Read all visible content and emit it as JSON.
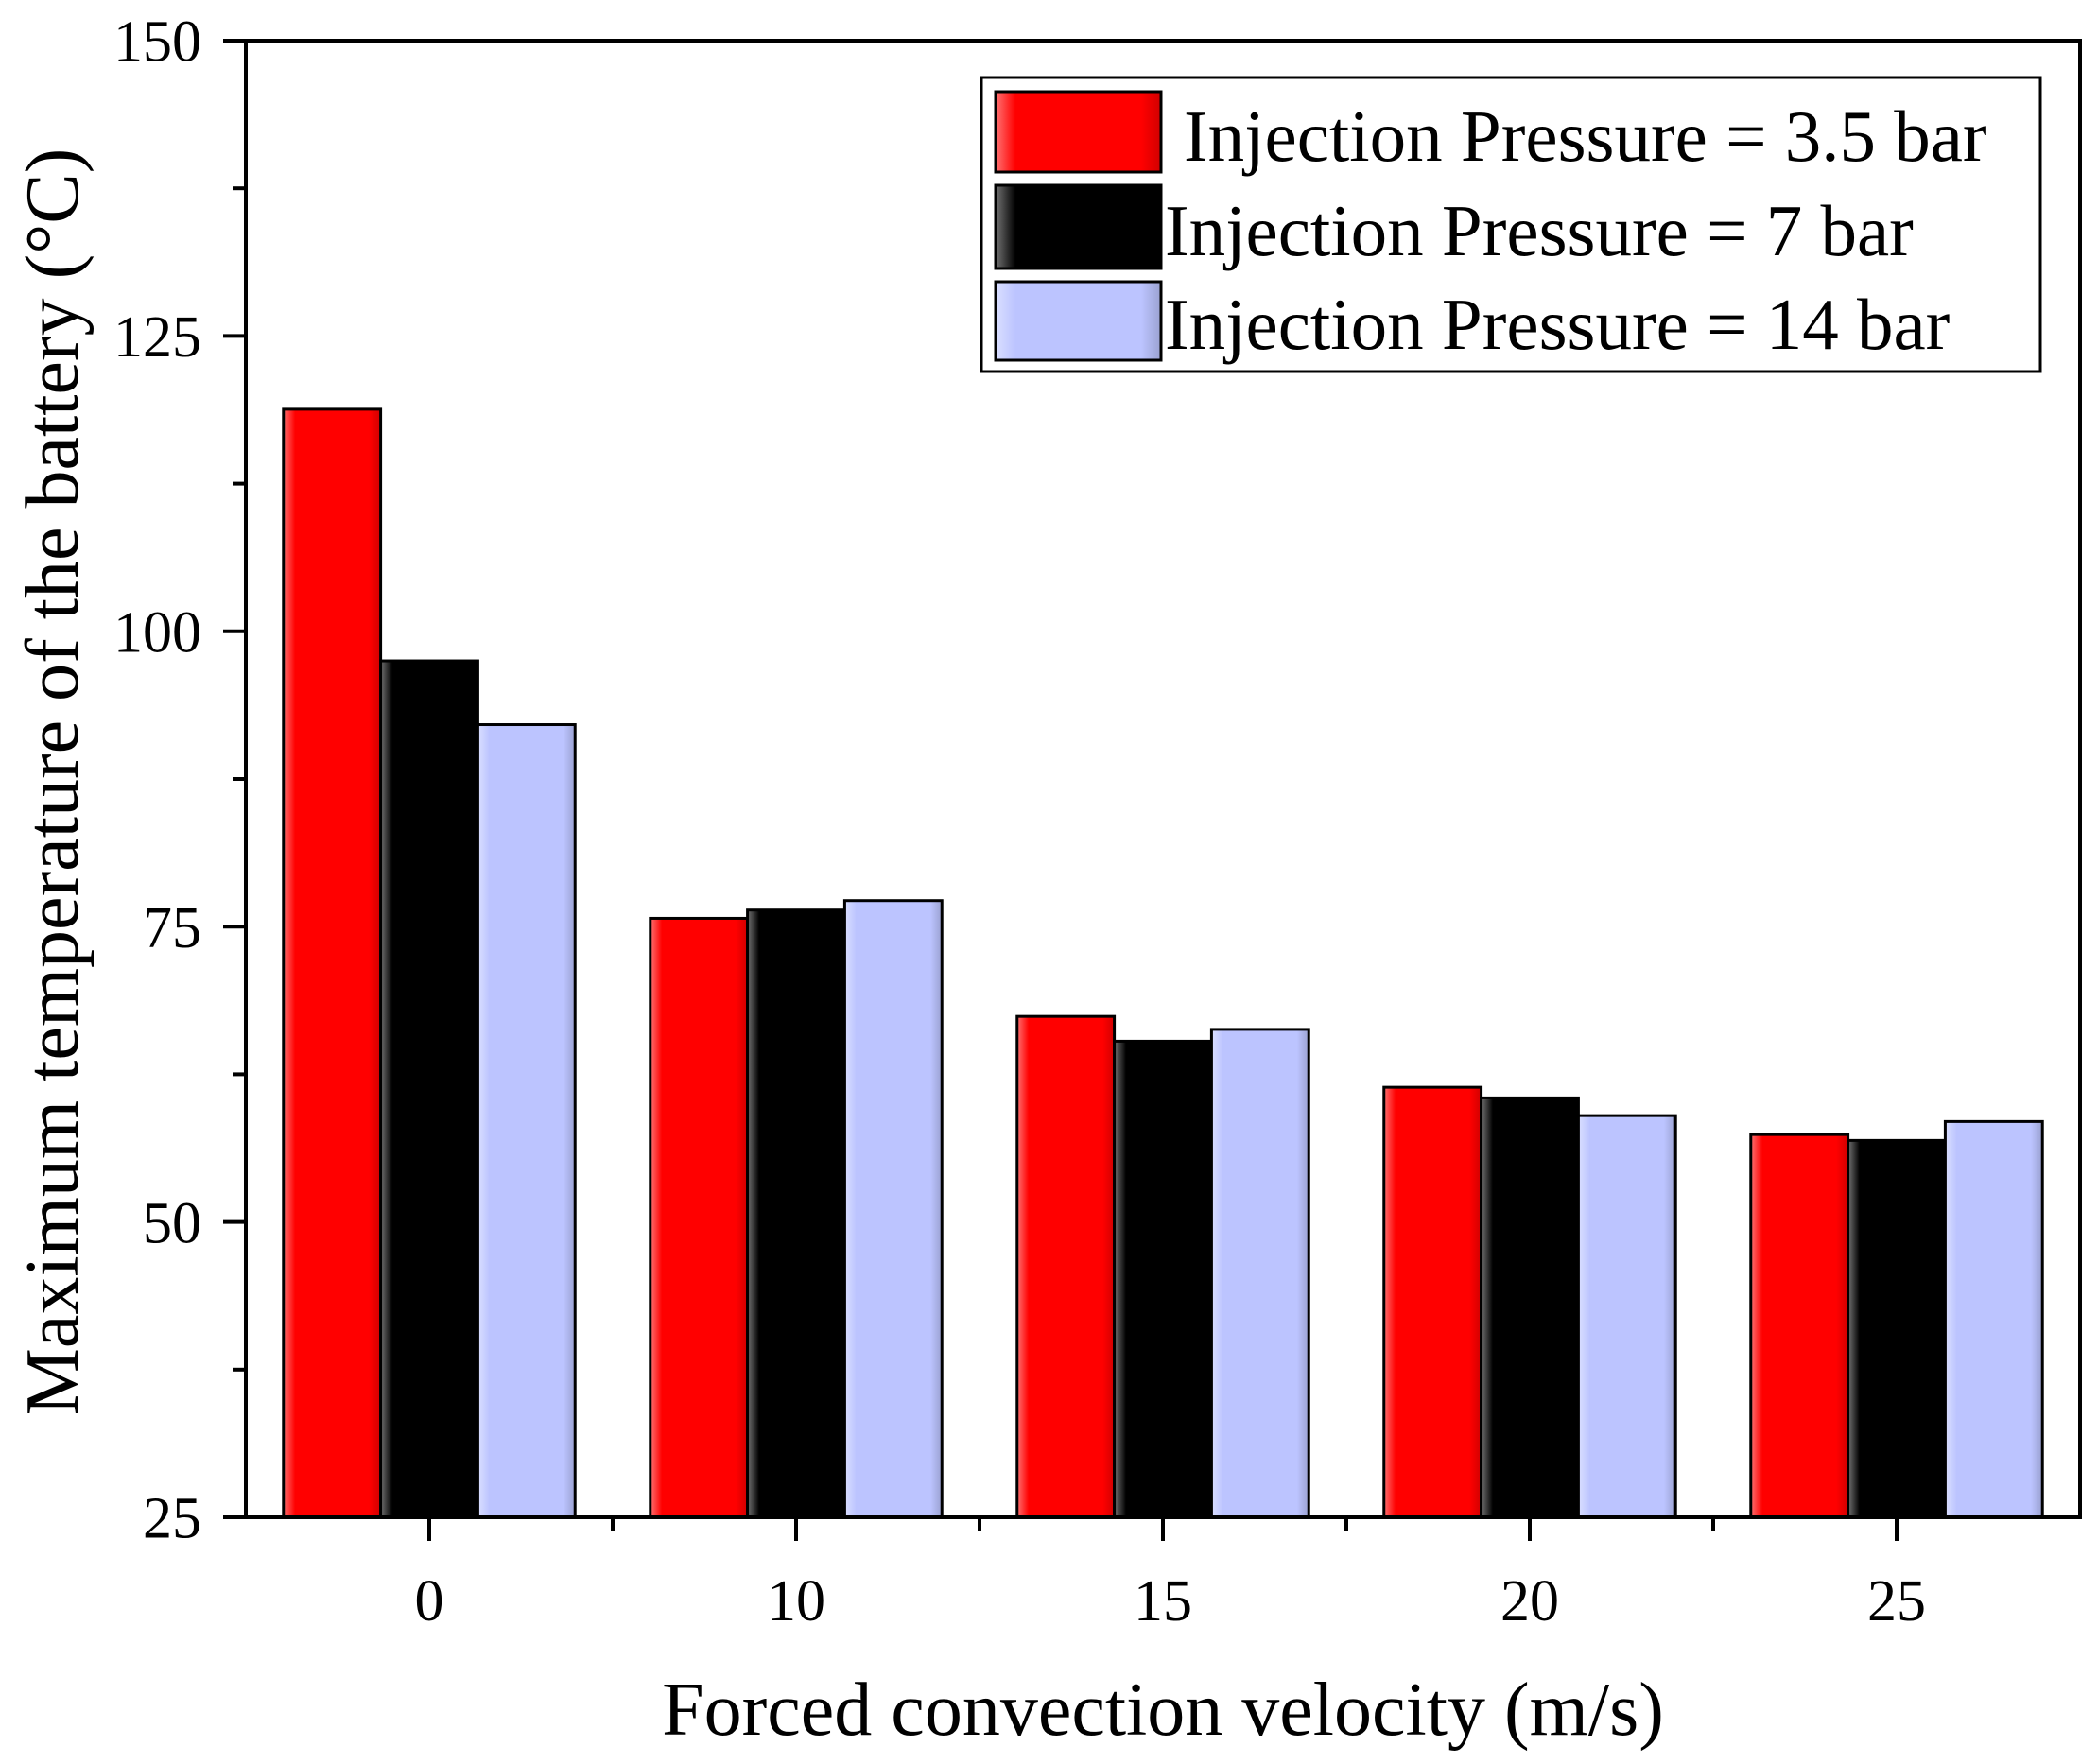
{
  "chart_data": {
    "type": "bar",
    "categories": [
      "0",
      "10",
      "15",
      "20",
      "25"
    ],
    "series": [
      {
        "name": "Injection Pressure = 3.5 bar",
        "color": "#ff0000",
        "values": [
          118.8,
          75.7,
          67.4,
          61.4,
          57.4
        ]
      },
      {
        "name": "Injection Pressure = 7 bar",
        "color": "#000000",
        "values": [
          97.5,
          76.4,
          65.3,
          60.5,
          56.9
        ]
      },
      {
        "name": "Injection Pressure = 14 bar",
        "color": "#bcc4ff",
        "values": [
          92.1,
          77.2,
          66.3,
          59.0,
          58.5
        ]
      }
    ],
    "xlabel": "Forced convection velocity (m/s)",
    "ylabel": "Maximum temperature of the battery (°C)",
    "ylim": [
      25,
      150
    ],
    "yticks": [
      25,
      50,
      75,
      100,
      125,
      150
    ],
    "yminor_step": 12.5,
    "grid": false
  }
}
